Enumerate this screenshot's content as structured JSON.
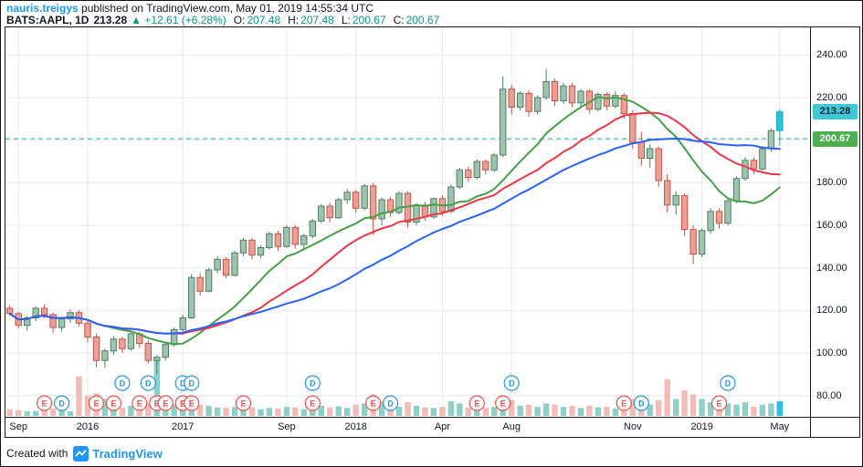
{
  "header": {
    "line1": {
      "username": "nauris.treigys",
      "rest": " published on TradingView.com, May 01, 2019 14:55:34 UTC"
    },
    "line2": {
      "symbol": "BATS:AAPL, 1D",
      "price": "213.28",
      "change": "▲ +12.61 (+6.28%)",
      "o_label": "O:",
      "o": "207.48",
      "h_label": "H:",
      "h": "207.48",
      "l_label": "L:",
      "l": "200.67",
      "c_label": "C:",
      "c": "200.67"
    }
  },
  "footer": {
    "created_with": "Created with",
    "brand": "TradingView"
  },
  "chart_data": {
    "type": "candlestick",
    "symbol": "BATS:AAPL",
    "interval": "1D",
    "slots": 93,
    "price_axis": {
      "ylim": [
        70,
        253
      ],
      "grid_levels": [
        80,
        100,
        120,
        140,
        160,
        180,
        200,
        220,
        240
      ],
      "tick_labels": [
        {
          "text": "240.00",
          "value": 240
        },
        {
          "text": "220.00",
          "value": 220
        },
        {
          "text": "180.00",
          "value": 180
        },
        {
          "text": "160.00",
          "value": 160
        },
        {
          "text": "140.00",
          "value": 140
        },
        {
          "text": "120.00",
          "value": 120
        },
        {
          "text": "100.00",
          "value": 100
        },
        {
          "text": "80.00",
          "value": 80
        }
      ]
    },
    "last_price_tag": {
      "text": "213.28",
      "value": 213.28
    },
    "prev_close_tag": {
      "text": "200.67",
      "value": 200.67
    },
    "time_labels": [
      {
        "t": "Sep",
        "i": 1
      },
      {
        "t": "2016",
        "i": 9
      },
      {
        "t": "2017",
        "i": 20
      },
      {
        "t": "Sep",
        "i": 32
      },
      {
        "t": "2018",
        "i": 40
      },
      {
        "t": "Apr",
        "i": 50
      },
      {
        "t": "Aug",
        "i": 58
      },
      {
        "t": "Nov",
        "i": 72
      },
      {
        "t": "2019",
        "i": 80
      },
      {
        "t": "May",
        "i": 89
      }
    ],
    "ma_lines": [
      {
        "name": "fast",
        "period": 12,
        "color": "#43a047"
      },
      {
        "name": "medium",
        "period": 20,
        "color": "#f23645"
      },
      {
        "name": "slow",
        "period": 30,
        "color": "#2962ff"
      }
    ],
    "colors": {
      "grid": "#e8eaed",
      "up_fill": "#9fc4ae",
      "up_border": "#4f7f67",
      "down_fill": "#e9a095",
      "down_border": "#c9544a",
      "last_fill": "#29c4da",
      "last_border": "#0fa8bf",
      "vol_up": "#8fd0c6",
      "vol_down": "#f2bdb6",
      "prev_close_line": "#26a69a",
      "last_label_bg": "#40c8da",
      "last_label_text": "#062e33",
      "prev_label_bg": "#4caf50",
      "prev_label_text": "#ffffff",
      "earnings": "#ef5350",
      "dividends": "#2196f3"
    },
    "candles": [
      [
        121,
        122.5,
        117.5,
        118.5
      ],
      [
        118.5,
        119.5,
        111.5,
        113
      ],
      [
        113,
        117.5,
        110.5,
        116.5
      ],
      [
        116.5,
        122,
        115,
        121
      ],
      [
        121,
        123,
        116.5,
        118
      ],
      [
        118,
        119,
        109.5,
        112
      ],
      [
        112,
        117,
        110,
        116
      ],
      [
        116,
        120.5,
        114,
        119
      ],
      [
        119,
        120,
        112.5,
        114
      ],
      [
        114,
        116,
        105,
        107.5
      ],
      [
        107.5,
        109,
        93.4,
        96.5
      ],
      [
        96.5,
        102,
        93,
        101
      ],
      [
        101,
        108,
        99,
        106.5
      ],
      [
        106.5,
        107.5,
        100,
        102
      ],
      [
        102,
        110,
        101,
        109
      ],
      [
        109,
        110,
        102.5,
        104.5
      ],
      [
        104.5,
        106,
        95,
        96.5
      ],
      [
        96.5,
        99,
        90,
        98
      ],
      [
        98,
        105,
        96.5,
        104
      ],
      [
        104,
        112,
        103,
        111
      ],
      [
        111,
        118,
        110,
        116.5
      ],
      [
        116.5,
        137,
        116,
        135.5
      ],
      [
        135.5,
        137.5,
        127,
        129
      ],
      [
        129,
        140,
        128.5,
        139
      ],
      [
        139,
        145.5,
        137.5,
        144
      ],
      [
        144,
        145,
        135,
        136.5
      ],
      [
        136.5,
        148,
        136,
        147
      ],
      [
        147,
        154,
        145.5,
        153
      ],
      [
        153,
        154,
        144,
        146
      ],
      [
        146,
        150.5,
        144.5,
        149.5
      ],
      [
        149.5,
        157,
        148.5,
        156
      ],
      [
        156,
        157.5,
        148,
        150
      ],
      [
        150,
        160,
        149.5,
        159
      ],
      [
        159,
        160,
        149,
        151
      ],
      [
        151,
        156,
        148.5,
        155
      ],
      [
        155,
        163,
        154,
        162
      ],
      [
        162,
        170,
        161,
        169
      ],
      [
        169,
        170.5,
        161.5,
        163.5
      ],
      [
        163.5,
        173,
        163,
        172
      ],
      [
        172,
        177,
        170,
        175.5
      ],
      [
        175.5,
        176.5,
        166,
        168
      ],
      [
        168,
        179.5,
        167,
        178.5
      ],
      [
        178.5,
        180,
        155.5,
        163
      ],
      [
        163,
        173,
        160,
        172
      ],
      [
        172,
        173.5,
        164,
        166
      ],
      [
        166,
        176,
        165,
        175
      ],
      [
        175,
        176,
        159,
        161.5
      ],
      [
        161.5,
        170.5,
        160,
        169.5
      ],
      [
        169.5,
        171,
        162,
        164
      ],
      [
        164,
        173,
        163,
        172.5
      ],
      [
        172.5,
        174,
        164.5,
        166.5
      ],
      [
        166.5,
        179,
        165.5,
        178
      ],
      [
        178,
        187,
        177,
        186
      ],
      [
        186,
        187.5,
        180.5,
        182.5
      ],
      [
        182.5,
        191,
        181.5,
        190
      ],
      [
        190,
        191,
        184,
        186
      ],
      [
        186,
        194,
        185,
        193
      ],
      [
        193,
        230,
        192,
        224
      ],
      [
        224,
        226,
        212,
        215.5
      ],
      [
        215.5,
        223,
        214,
        222
      ],
      [
        222,
        223.5,
        211,
        213.5
      ],
      [
        213.5,
        221,
        212,
        220
      ],
      [
        220,
        233.5,
        219,
        227.5
      ],
      [
        227.5,
        229,
        216,
        218.5
      ],
      [
        218.5,
        227,
        217,
        225.5
      ],
      [
        225.5,
        227,
        215.5,
        217.5
      ],
      [
        217.5,
        224,
        216,
        223
      ],
      [
        223,
        224,
        212.5,
        214.5
      ],
      [
        214.5,
        222.5,
        213.5,
        221.5
      ],
      [
        221.5,
        222.5,
        214,
        216
      ],
      [
        216,
        223,
        215,
        221
      ],
      [
        221,
        222,
        210,
        212.5
      ],
      [
        212.5,
        214,
        196,
        199
      ],
      [
        199,
        204,
        188,
        191.5
      ],
      [
        191.5,
        198,
        187,
        196
      ],
      [
        196,
        197,
        178,
        181
      ],
      [
        181,
        184,
        166,
        169.5
      ],
      [
        169.5,
        176,
        165,
        174
      ],
      [
        174,
        175,
        155,
        158
      ],
      [
        158,
        160,
        141.8,
        146.5
      ],
      [
        146.5,
        158.5,
        145,
        157.5
      ],
      [
        157.5,
        168,
        156,
        166.5
      ],
      [
        166.5,
        168,
        158.5,
        161
      ],
      [
        161,
        172.5,
        160,
        171.5
      ],
      [
        171.5,
        183,
        170.5,
        182
      ],
      [
        182,
        192,
        181,
        190.5
      ],
      [
        190.5,
        192,
        184,
        186.5
      ],
      [
        186.5,
        197,
        185.5,
        196
      ],
      [
        196,
        205.5,
        194.5,
        204.5
      ],
      [
        204.5,
        214.6,
        197.2,
        213.28
      ]
    ],
    "volume": [
      1.2,
      1,
      0.8,
      0.9,
      1.1,
      1.3,
      0.9,
      0.8,
      7,
      3.5,
      4,
      3,
      2,
      1.5,
      1.8,
      1.6,
      2.2,
      10,
      2.5,
      2,
      2.8,
      3.5,
      2,
      1.8,
      1.5,
      1.4,
      1.6,
      1.8,
      1.5,
      1.2,
      1.4,
      1.3,
      1.6,
      1.5,
      1.2,
      1.6,
      1.8,
      1.5,
      1.7,
      1.4,
      2,
      2.2,
      3.8,
      2.5,
      1.8,
      1.6,
      2.4,
      1.8,
      1.5,
      1.4,
      1.6,
      2.6,
      2.2,
      1.5,
      1.8,
      1.4,
      1.6,
      3.6,
      2.8,
      1.8,
      2,
      1.6,
      2.2,
      2,
      1.6,
      1.8,
      1.4,
      1.8,
      1.5,
      1.6,
      1.3,
      1.8,
      3,
      2.6,
      2,
      2.8,
      6.5,
      3,
      4.5,
      3.8,
      3,
      2.4,
      1.8,
      2.2,
      2,
      2.4,
      1.6,
      2,
      2.2,
      2.6
    ],
    "markers": [
      {
        "i": 4,
        "t": "E"
      },
      {
        "i": 6,
        "t": "D"
      },
      {
        "i": 10,
        "t": "E"
      },
      {
        "i": 12,
        "t": "E"
      },
      {
        "i": 13,
        "t": "D",
        "r": 1
      },
      {
        "i": 15,
        "t": "E"
      },
      {
        "i": 16,
        "t": "D",
        "r": 1
      },
      {
        "i": 17,
        "t": "E"
      },
      {
        "i": 18,
        "t": "E"
      },
      {
        "i": 20,
        "t": "E"
      },
      {
        "i": 20,
        "t": "D",
        "r": 1
      },
      {
        "i": 21,
        "t": "E"
      },
      {
        "i": 21,
        "t": "D",
        "r": 1
      },
      {
        "i": 27,
        "t": "E"
      },
      {
        "i": 35,
        "t": "E"
      },
      {
        "i": 35,
        "t": "D",
        "r": 1
      },
      {
        "i": 42,
        "t": "E"
      },
      {
        "i": 44,
        "t": "D"
      },
      {
        "i": 54,
        "t": "E"
      },
      {
        "i": 57,
        "t": "E"
      },
      {
        "i": 58,
        "t": "D",
        "r": 1
      },
      {
        "i": 71,
        "t": "E"
      },
      {
        "i": 73,
        "t": "D"
      },
      {
        "i": 82,
        "t": "E"
      },
      {
        "i": 83,
        "t": "D",
        "r": 1
      }
    ]
  }
}
